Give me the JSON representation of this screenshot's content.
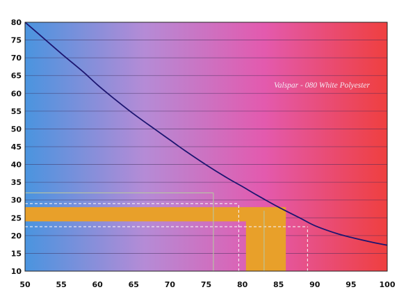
{
  "chart_data": {
    "type": "line",
    "title": "",
    "xlabel": "",
    "ylabel": "",
    "annotation": "Valspar - 080 White Polyester",
    "xlim": [
      50,
      100
    ],
    "ylim": [
      10,
      80
    ],
    "x_ticks": [
      50,
      55,
      60,
      65,
      70,
      75,
      80,
      85,
      90,
      95,
      100
    ],
    "y_ticks": [
      10,
      15,
      20,
      25,
      30,
      35,
      40,
      45,
      50,
      55,
      60,
      65,
      70,
      75,
      80
    ],
    "grid": "horizontal",
    "background_gradient": [
      "#4a94df",
      "#b58bd6",
      "#e35aae",
      "#ef3f3f"
    ],
    "curve_color": "#1c1570",
    "band_color": "#e8a02a",
    "series": [
      {
        "x": [
          50,
          52,
          55,
          58,
          60,
          62,
          65,
          68,
          70,
          72,
          75,
          78,
          80,
          82,
          85,
          88,
          90,
          93,
          95,
          98,
          100
        ],
        "values": [
          80,
          76.5,
          71.2,
          66.1,
          62.4,
          59.0,
          54.2,
          49.8,
          46.9,
          44.0,
          39.9,
          36.1,
          33.8,
          31.4,
          28.0,
          24.9,
          22.8,
          20.6,
          19.5,
          18.1,
          17.3
        ]
      }
    ],
    "bands": {
      "horizontal": {
        "y_from": 24,
        "y_to": 28,
        "x_from": 50,
        "x_to": 86
      },
      "vertical": {
        "x_from": 80.5,
        "x_to": 86,
        "y_from": 10,
        "y_to": 28
      }
    },
    "reference_lines": [
      {
        "axis": "y",
        "value": 32,
        "x_to": 76,
        "style": "solid"
      },
      {
        "axis": "y",
        "value": 29,
        "x_to": 79.5,
        "style": "dashed"
      },
      {
        "axis": "y",
        "value": 22.5,
        "x_to": 89,
        "style": "dashed"
      },
      {
        "axis": "x",
        "value": 76,
        "y_to": 32,
        "style": "solid"
      },
      {
        "axis": "x",
        "value": 79.5,
        "y_to": 29,
        "style": "dashed"
      },
      {
        "axis": "x",
        "value": 83,
        "y_to": 27,
        "style": "solid"
      },
      {
        "axis": "x",
        "value": 89,
        "y_to": 22.5,
        "style": "dashed"
      }
    ]
  }
}
